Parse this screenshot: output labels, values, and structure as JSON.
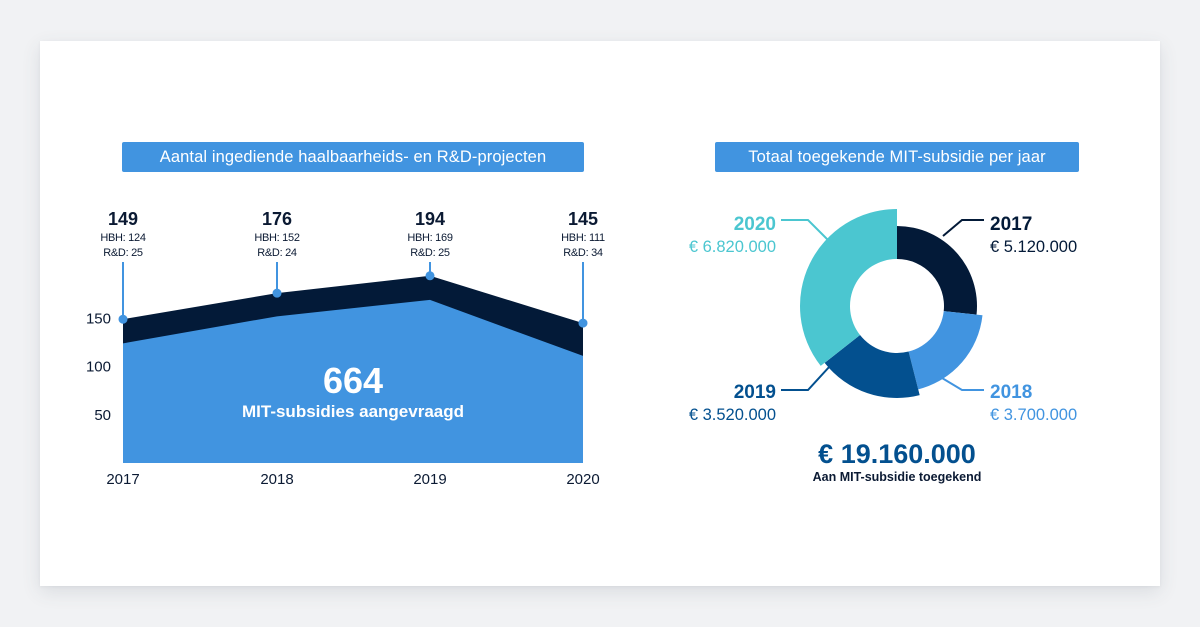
{
  "colors": {
    "background": "#f1f2f4",
    "card": "#ffffff",
    "title_box": "#4194e0",
    "navy": "#031a38",
    "blue": "#4194e0",
    "dark_blue": "#03508f",
    "teal": "#4bc6d0",
    "text_dark": "#0b1a33"
  },
  "chart_data": [
    {
      "type": "area",
      "title": "Aantal ingediende haalbaarheids- en R&D-projecten",
      "xlabel": "",
      "ylabel": "",
      "categories": [
        "2017",
        "2018",
        "2019",
        "2020"
      ],
      "series": [
        {
          "name": "HBH",
          "values": [
            124,
            152,
            169,
            111
          ],
          "color": "#4194e0"
        },
        {
          "name": "R&D",
          "values": [
            25,
            24,
            25,
            34
          ],
          "color": "#031a38"
        }
      ],
      "totals": [
        149,
        176,
        194,
        145
      ],
      "point_labels": [
        {
          "total": "149",
          "hbh": "HBH: 124",
          "rd": "R&D: 25"
        },
        {
          "total": "176",
          "hbh": "HBH: 152",
          "rd": "R&D: 24"
        },
        {
          "total": "194",
          "hbh": "HBH: 169",
          "rd": "R&D: 25"
        },
        {
          "total": "145",
          "hbh": "HBH: 111",
          "rd": "R&D: 34"
        }
      ],
      "stacked": true,
      "y_ticks": [
        50,
        100,
        150
      ],
      "ylim": [
        0,
        200
      ],
      "grid": false,
      "annotation": {
        "value": "664",
        "label": "MIT-subsidies aangevraagd"
      }
    },
    {
      "type": "pie",
      "donut": true,
      "title": "Totaal toegekende MIT-subsidie per jaar",
      "categories": [
        "2017",
        "2018",
        "2019",
        "2020"
      ],
      "values": [
        5120000,
        3700000,
        3520000,
        6820000
      ],
      "value_labels": [
        "€ 5.120.000",
        "€ 3.700.000",
        "€ 3.520.000",
        "€ 6.820.000"
      ],
      "colors": [
        "#031a38",
        "#4194e0",
        "#03508f",
        "#4bc6d0"
      ],
      "label_positions": [
        "top-right",
        "bottom-right",
        "bottom-left",
        "top-left"
      ],
      "total": {
        "value": "€ 19.160.000",
        "label": "Aan MIT-subsidie toegekend"
      }
    }
  ]
}
